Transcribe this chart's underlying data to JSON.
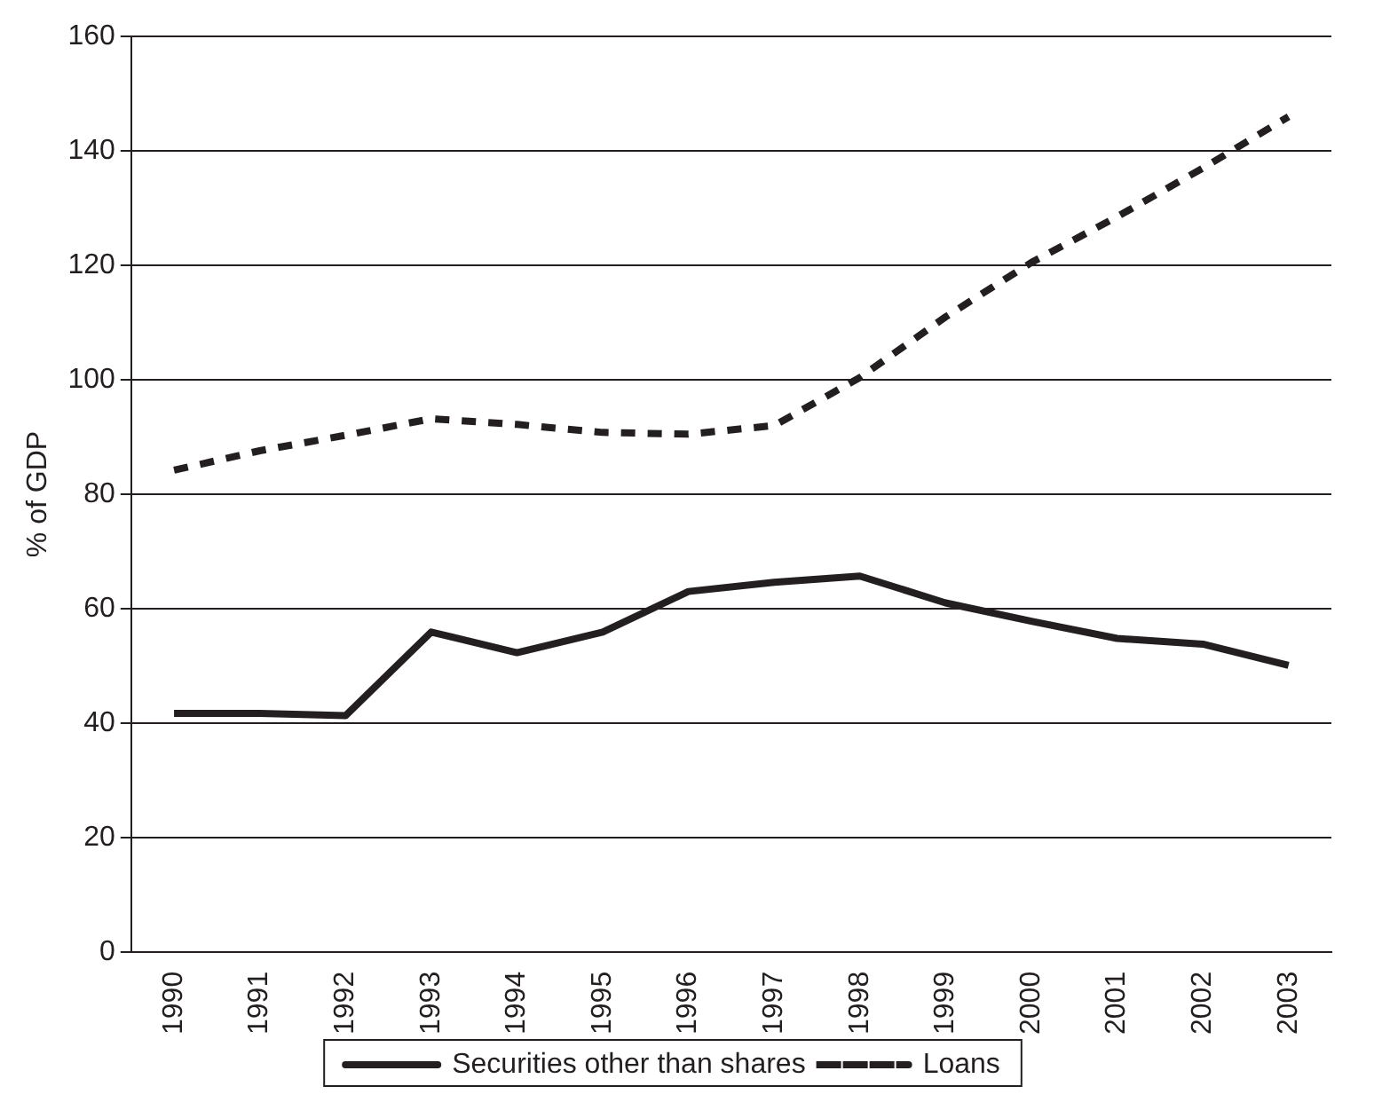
{
  "chart_data": {
    "type": "line",
    "ylabel": "% of GDP",
    "categories": [
      "1990",
      "1991",
      "1992",
      "1993",
      "1994",
      "1995",
      "1996",
      "1997",
      "1998",
      "1999",
      "2000",
      "2001",
      "2002",
      "2003"
    ],
    "series": [
      {
        "name": "Securities other than shares",
        "color": "#231f20",
        "line_style": "solid",
        "values": [
          41.7,
          41.7,
          41.3,
          55.9,
          52.3,
          55.9,
          63,
          64.6,
          65.7,
          61,
          57.8,
          54.8,
          53.8,
          50.1
        ]
      },
      {
        "name": "Loans",
        "color": "#231f20",
        "line_style": "dashed",
        "values": [
          84.2,
          87.6,
          90.3,
          93.2,
          92.2,
          90.8,
          90.5,
          92,
          100.4,
          111,
          120.5,
          128.5,
          137,
          146
        ]
      }
    ],
    "ylim": [
      0,
      160
    ],
    "yticks": [
      0,
      20,
      40,
      60,
      80,
      100,
      120,
      140,
      160
    ],
    "grid": "y",
    "legend": "bottom",
    "marker": "none"
  }
}
